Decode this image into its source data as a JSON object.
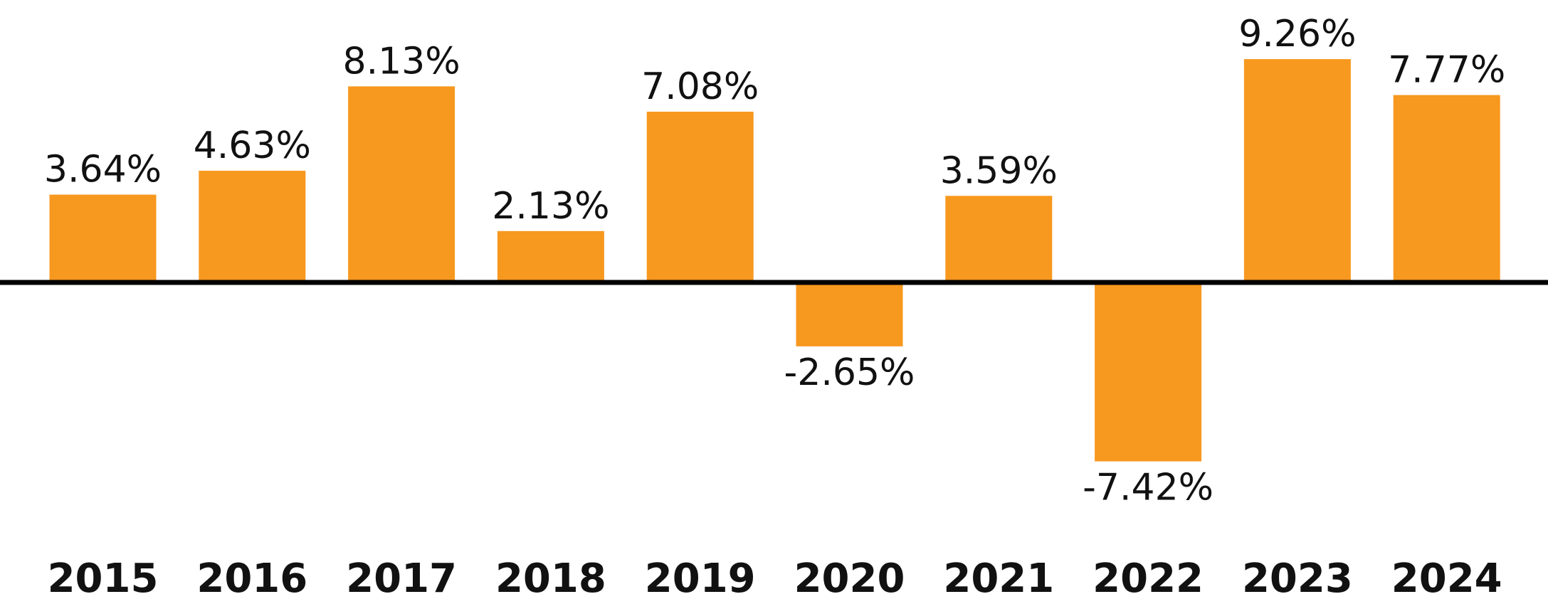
{
  "chart_data": {
    "type": "bar",
    "categories": [
      "2015",
      "2016",
      "2017",
      "2018",
      "2019",
      "2020",
      "2021",
      "2022",
      "2023",
      "2024"
    ],
    "values": [
      3.64,
      4.63,
      8.13,
      2.13,
      7.08,
      -2.65,
      3.59,
      -7.42,
      9.26,
      7.77
    ],
    "value_labels": [
      "3.64%",
      "4.63%",
      "8.13%",
      "2.13%",
      "7.08%",
      "-2.65%",
      "3.59%",
      "-7.42%",
      "9.26%",
      "7.77%"
    ],
    "title": "",
    "xlabel": "",
    "ylabel": "",
    "ylim": [
      -10,
      10
    ],
    "grid": false,
    "legend": "none",
    "colors": {
      "bar": "#F7981F",
      "axis": "#000000",
      "text": "#111111"
    }
  }
}
